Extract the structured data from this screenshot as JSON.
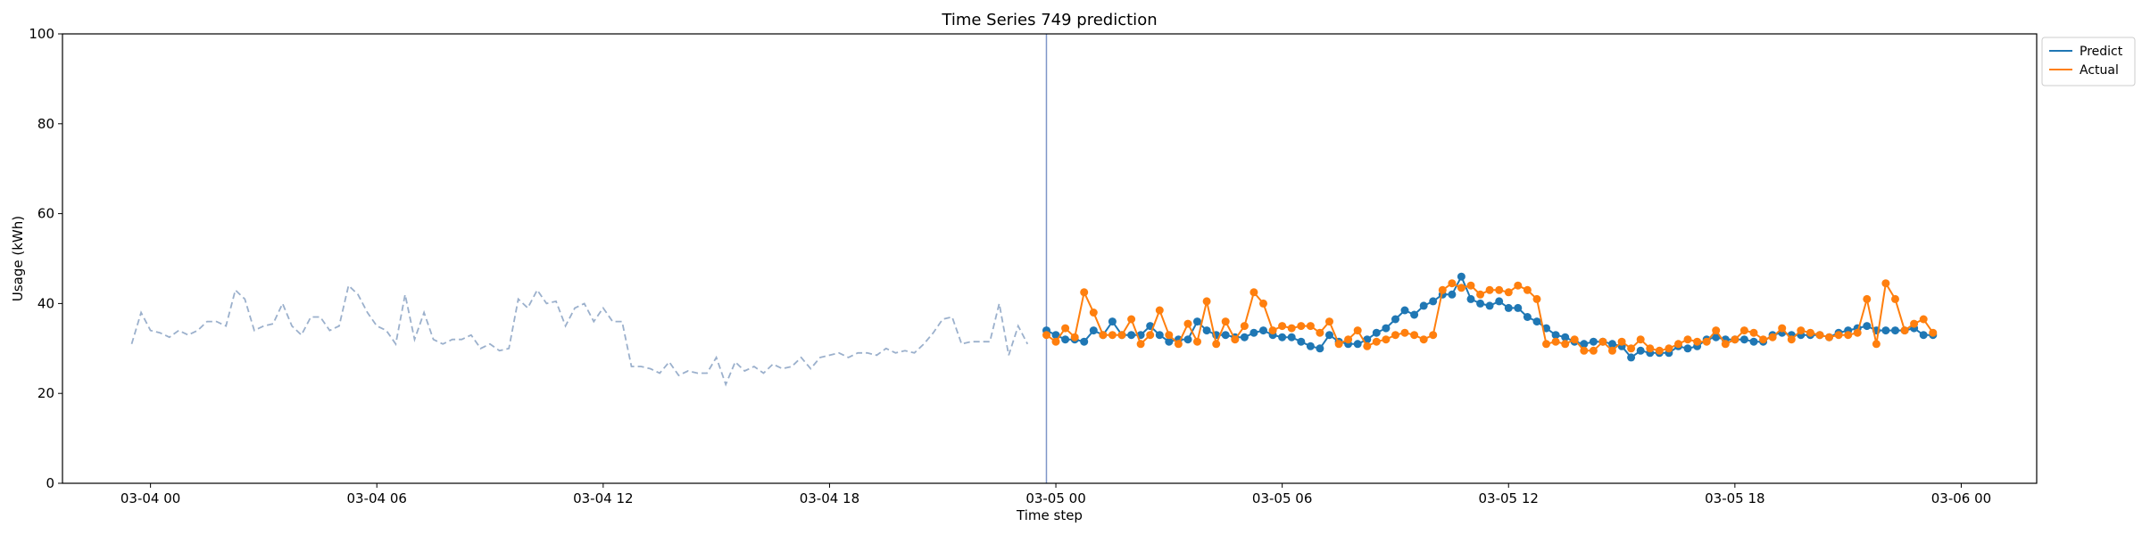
{
  "chart_data": {
    "type": "line",
    "title": "Time Series 749 prediction",
    "xlabel": "Time step",
    "ylabel": "Usage (kWh)",
    "ylim": [
      0,
      100
    ],
    "yticks": [
      0,
      20,
      40,
      60,
      80,
      100
    ],
    "xlim": [
      "2024-03-03 21:40",
      "2024-03-06 02:00"
    ],
    "xticks": [
      {
        "t": "2024-03-04 00:00",
        "label": "03-04 00"
      },
      {
        "t": "2024-03-04 06:00",
        "label": "03-04 06"
      },
      {
        "t": "2024-03-04 12:00",
        "label": "03-04 12"
      },
      {
        "t": "2024-03-04 18:00",
        "label": "03-04 18"
      },
      {
        "t": "2024-03-05 00:00",
        "label": "03-05 00"
      },
      {
        "t": "2024-03-05 06:00",
        "label": "03-05 06"
      },
      {
        "t": "2024-03-05 12:00",
        "label": "03-05 12"
      },
      {
        "t": "2024-03-05 18:00",
        "label": "03-05 18"
      },
      {
        "t": "2024-03-06 00:00",
        "label": "03-06 00"
      }
    ],
    "grid": false,
    "legend_position": "upper right (outside plot)",
    "forecast_start": "2024-03-04 23:45",
    "series": [
      {
        "name": "",
        "role": "history",
        "color": "#9bb0cc",
        "style": "dashed",
        "start": "2024-03-03 23:30",
        "interval_minutes": 15,
        "values": [
          31,
          38,
          34,
          33.5,
          32.5,
          34,
          33,
          34,
          36,
          36,
          35,
          43,
          41,
          34,
          35,
          35.5,
          40,
          35,
          33,
          37,
          37,
          34,
          35,
          44,
          42,
          38,
          35,
          34,
          31,
          42,
          32,
          38,
          32,
          31,
          32,
          32,
          33,
          30,
          31,
          29.5,
          30,
          41,
          39,
          43,
          40,
          40.5,
          35,
          39,
          40,
          36,
          39,
          36,
          36,
          26,
          26,
          25.5,
          24.5,
          27,
          24,
          25,
          24.5,
          24.5,
          28,
          22,
          27,
          25,
          26,
          24.5,
          26.5,
          25.5,
          26,
          28,
          25.5,
          28,
          28.5,
          29,
          28,
          29,
          29,
          28.5,
          30,
          29,
          29.5,
          29,
          31,
          33.5,
          36.5,
          37,
          31,
          31.5,
          31.5,
          31.5,
          40,
          28.5,
          35,
          31
        ]
      },
      {
        "name": "Predict",
        "role": "forecast",
        "color": "#1f77b4",
        "style": "solid-markers",
        "start": "2024-03-04 23:45",
        "interval_minutes": 15,
        "values": [
          34,
          33,
          32,
          32,
          31.5,
          34,
          33,
          36,
          33,
          33,
          33,
          35,
          33,
          31.5,
          32,
          32,
          36,
          34,
          33,
          33,
          32.5,
          32.5,
          33.5,
          34,
          33,
          32.5,
          32.5,
          31.5,
          30.5,
          30,
          33,
          31.5,
          31,
          31,
          32,
          33.5,
          34.5,
          36.5,
          38.5,
          37.5,
          39.5,
          40.5,
          42,
          42,
          46,
          41,
          40,
          39.5,
          40.5,
          39,
          39,
          37,
          36,
          34.5,
          33,
          32.5,
          31.5,
          31,
          31.5,
          31.5,
          31,
          30.5,
          28,
          29.5,
          29,
          29,
          29,
          30.5,
          30,
          30.5,
          32,
          32.5,
          32,
          32,
          32,
          31.5,
          31.5,
          33,
          33.5,
          33,
          33,
          33,
          33,
          32.5,
          33.5,
          34,
          34.5,
          35,
          34,
          34,
          34,
          34,
          34.5,
          33,
          33
        ]
      },
      {
        "name": "Actual",
        "role": "actual",
        "color": "#ff7f0e",
        "style": "solid-markers",
        "start": "2024-03-04 23:45",
        "interval_minutes": 15,
        "values": [
          33,
          31.5,
          34.5,
          32.5,
          42.5,
          38,
          33,
          33,
          33,
          36.5,
          31,
          33,
          38.5,
          33,
          31,
          35.5,
          31.5,
          40.5,
          31,
          36,
          32,
          35,
          42.5,
          40,
          34,
          35,
          34.5,
          35,
          35,
          33.5,
          36,
          31,
          32,
          34,
          30.5,
          31.5,
          32,
          33,
          33.5,
          33,
          32,
          33,
          43,
          44.5,
          43.5,
          44,
          42,
          43,
          43,
          42.5,
          44,
          43,
          41,
          31,
          31.5,
          31,
          32,
          29.5,
          29.5,
          31.5,
          29.5,
          31.5,
          30,
          32,
          30,
          29.5,
          30,
          31,
          32,
          31.5,
          31.5,
          34,
          31,
          32,
          34,
          33.5,
          32,
          32.5,
          34.5,
          32,
          34,
          33.5,
          33,
          32.5,
          33,
          33,
          33.5,
          41,
          31,
          44.5,
          41,
          34,
          35.5,
          36.5,
          33.5
        ]
      }
    ]
  }
}
